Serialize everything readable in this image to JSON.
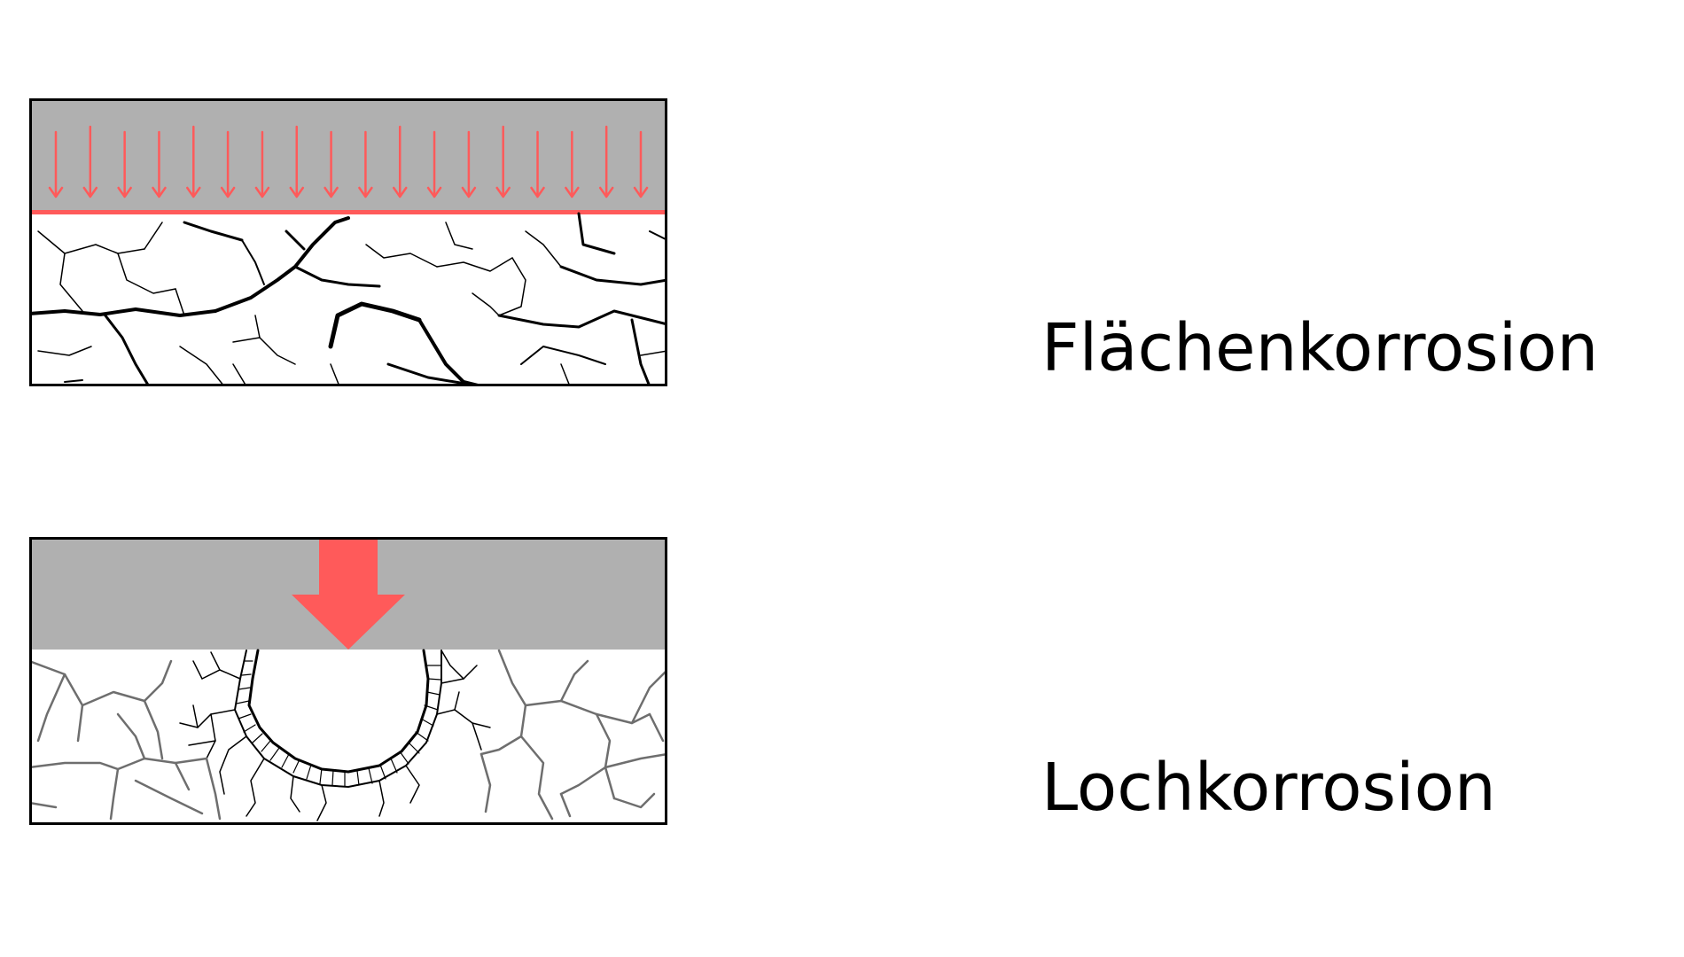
{
  "labels": {
    "surface": "Flächenkorrosion",
    "pitting": "Lochkorrosion"
  },
  "colors": {
    "coating": "#b0b0b0",
    "attack": "#ff5a5a",
    "metal": "#ffffff",
    "crack": "#000000",
    "crack_light": "#6e6e6e",
    "frame": "#000000"
  },
  "icons": {
    "surface_attack": "many-thin-down-arrows",
    "pitting_attack": "single-large-down-arrow"
  }
}
